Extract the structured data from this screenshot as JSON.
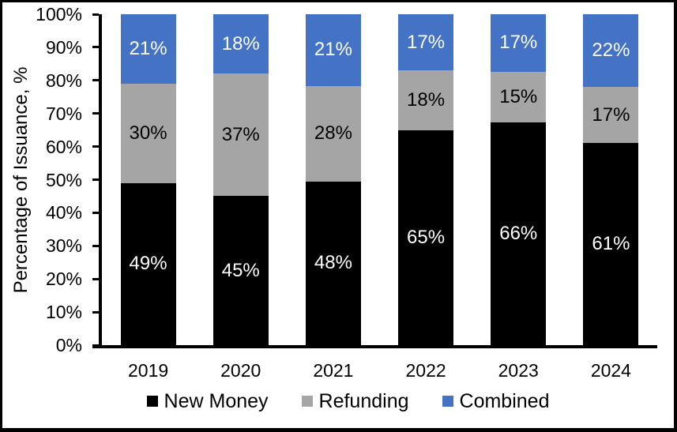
{
  "chart_data": {
    "type": "bar",
    "subtype": "stacked-100",
    "title": "",
    "xlabel": "",
    "ylabel": "Percentage of Issuance, %",
    "categories": [
      "2019",
      "2020",
      "2021",
      "2022",
      "2023",
      "2024"
    ],
    "series": [
      {
        "name": "New Money",
        "color": "#000000",
        "label_color": "#ffffff",
        "values": [
          49,
          45,
          48,
          65,
          66,
          61
        ]
      },
      {
        "name": "Refunding",
        "color": "#a5a5a5",
        "label_color": "#000000",
        "values": [
          30,
          37,
          28,
          18,
          15,
          17
        ]
      },
      {
        "name": "Combined",
        "color": "#4472c4",
        "label_color": "#ffffff",
        "values": [
          21,
          18,
          21,
          17,
          17,
          22
        ]
      }
    ],
    "value_suffix": "%",
    "ylim": [
      0,
      100
    ],
    "yticks": [
      "0%",
      "10%",
      "20%",
      "30%",
      "40%",
      "50%",
      "60%",
      "70%",
      "80%",
      "90%",
      "100%"
    ],
    "grid": false,
    "legend_position": "bottom",
    "axis_color": "#000000",
    "background_color": "#ffffff"
  }
}
